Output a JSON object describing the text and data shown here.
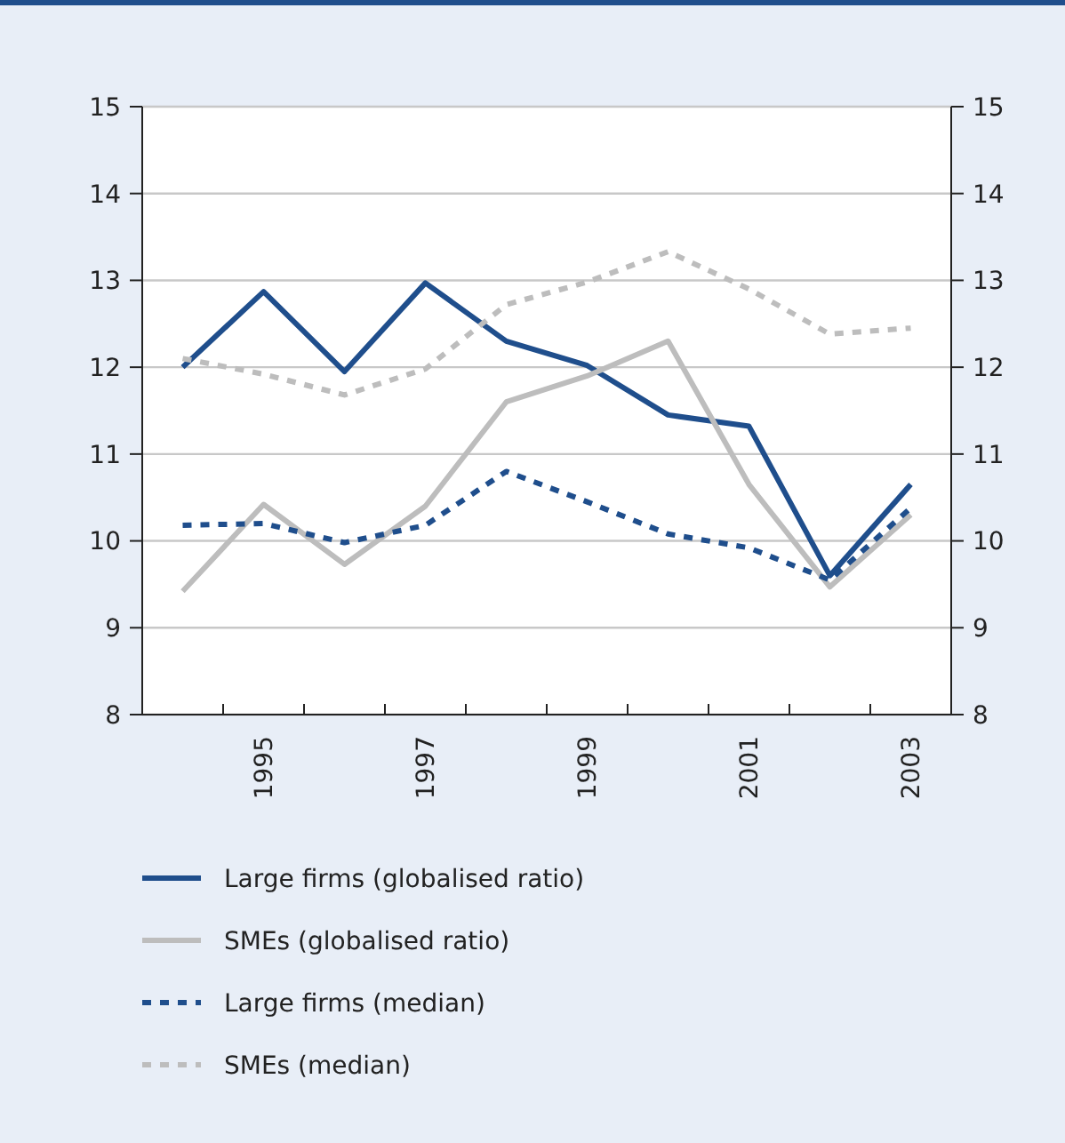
{
  "chart_data": {
    "type": "line",
    "categories": [
      null,
      "1995",
      null,
      "1997",
      null,
      "1999",
      null,
      "2001",
      null,
      "2003"
    ],
    "series": [
      {
        "name": "Large firms (globalised ratio)",
        "color": "#1f4e8c",
        "line_style": "solid",
        "values": [
          12.0,
          12.87,
          11.95,
          12.97,
          12.3,
          12.02,
          11.45,
          11.32,
          9.6,
          10.65
        ]
      },
      {
        "name": "SMEs (globalised ratio)",
        "color": "#bdbdbd",
        "line_style": "solid",
        "values": [
          9.42,
          10.42,
          9.73,
          10.4,
          11.6,
          11.9,
          12.3,
          10.65,
          9.47,
          10.3
        ]
      },
      {
        "name": "Large firms (median)",
        "color": "#1f4e8c",
        "line_style": "dashed",
        "values": [
          10.18,
          10.2,
          9.98,
          10.18,
          10.8,
          10.45,
          10.08,
          9.92,
          9.55,
          10.38
        ]
      },
      {
        "name": "SMEs (median)",
        "color": "#bdbdbd",
        "line_style": "dashed",
        "values": [
          12.1,
          11.92,
          11.68,
          11.98,
          12.72,
          12.98,
          13.33,
          12.9,
          12.38,
          12.45
        ]
      }
    ],
    "ylim": [
      8,
      15
    ],
    "yticks": [
      8,
      9,
      10,
      11,
      12,
      13,
      14,
      15
    ],
    "y2lim": [
      8,
      15
    ],
    "y2ticks": [
      8,
      9,
      10,
      11,
      12,
      13,
      14,
      15
    ],
    "grid": "y",
    "legend": "bottom"
  }
}
